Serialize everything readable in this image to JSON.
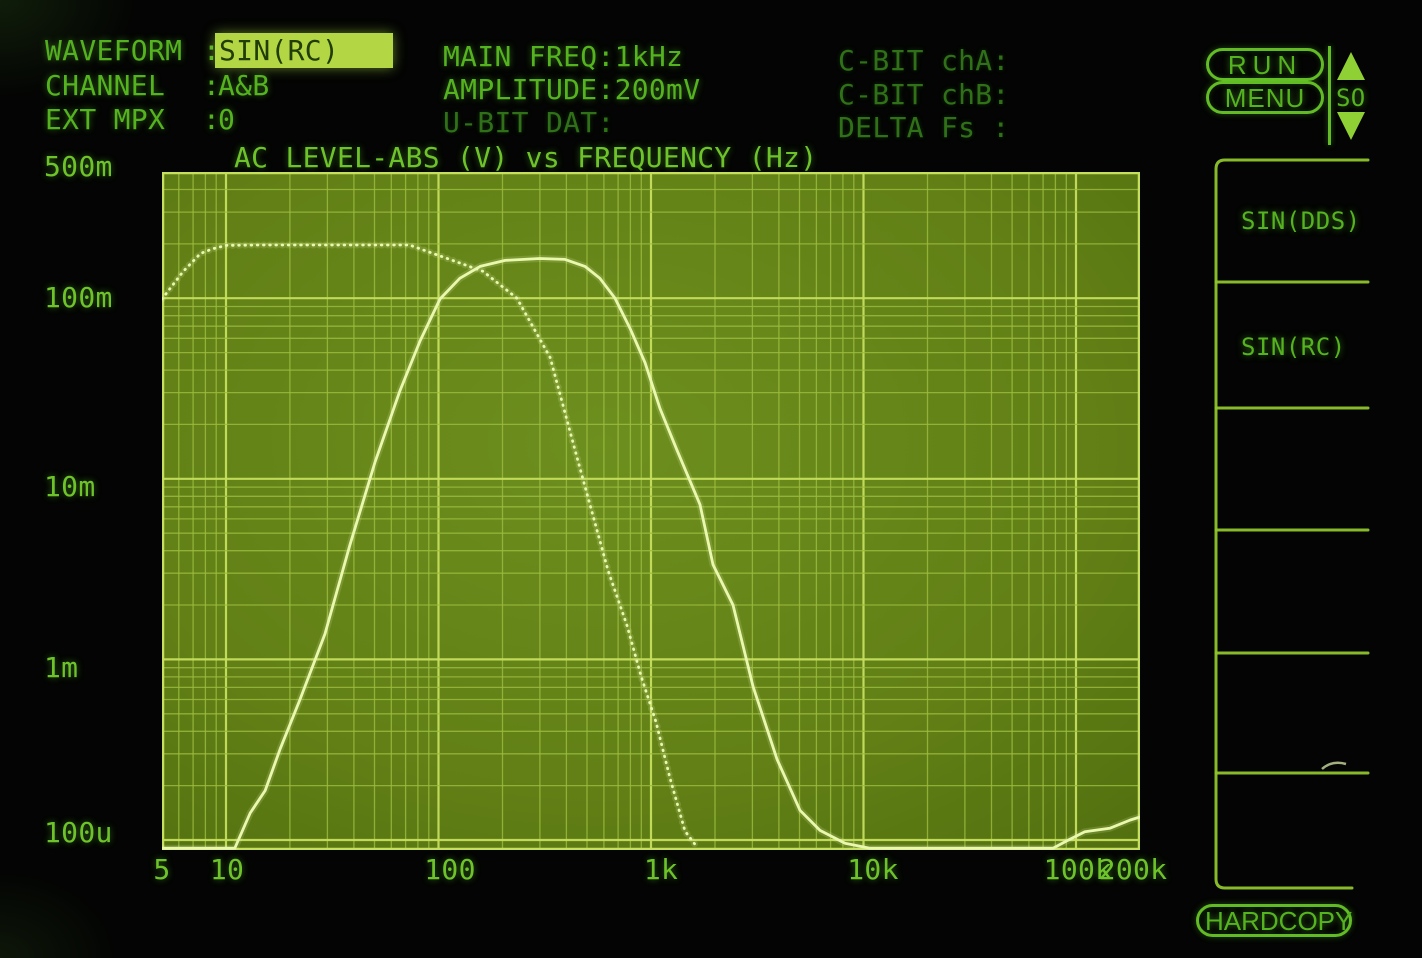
{
  "header": {
    "colon": ":",
    "rows": [
      {
        "label": "WAVEFORM",
        "value": "SIN(RC)"
      },
      {
        "label": "CHANNEL",
        "value": "A&B"
      },
      {
        "label": "EXT MPX",
        "value": "0"
      }
    ],
    "col2": [
      "MAIN FREQ:1kHz",
      "AMPLITUDE:200mV",
      "U-BIT DAT:"
    ],
    "col3": [
      "C-BIT chA:",
      "C-BIT chB:",
      "DELTA Fs :"
    ]
  },
  "controls": {
    "run": "RUN",
    "menu": "MENU",
    "scroll_label": "SO",
    "hardcopy": "HARDCOPY"
  },
  "softkeys": [
    "SIN(DDS)",
    "SIN(RC)",
    "",
    "",
    "",
    ""
  ],
  "colors": {
    "phosphor_text": "#55b31f",
    "dim_text": "#2f7018",
    "highlight_bg": "#b2d644",
    "highlight_text": "#213d03",
    "plot_background": "#617f15",
    "grid_minor": "#9dbd40",
    "grid_major": "#c6df5e",
    "trace": "#eaf8ae",
    "screen_background": "#030403"
  },
  "chart_data": {
    "type": "line",
    "title": "AC LEVEL-ABS (V) vs FREQUENCY (Hz)",
    "xlabel": "FREQUENCY (Hz)",
    "ylabel": "AC LEVEL-ABS (V)",
    "x_scale": "log",
    "y_scale": "log",
    "xlim": [
      5,
      200000
    ],
    "ylim": [
      8.8e-05,
      0.5
    ],
    "grid": "log decades with minor lines, both axes",
    "legend_position": "none",
    "x_ticks": [
      {
        "value": 5,
        "label": "5"
      },
      {
        "value": 10,
        "label": "10"
      },
      {
        "value": 100,
        "label": "100"
      },
      {
        "value": 1000,
        "label": "1k"
      },
      {
        "value": 10000,
        "label": "10k"
      },
      {
        "value": 100000,
        "label": "100k"
      },
      {
        "value": 200000,
        "label": "200k"
      }
    ],
    "y_ticks": [
      {
        "value": 0.5,
        "label": "500m"
      },
      {
        "value": 0.1,
        "label": "100m"
      },
      {
        "value": 0.01,
        "label": "10m"
      },
      {
        "value": 0.001,
        "label": "1m"
      },
      {
        "value": 0.0001,
        "label": "100u"
      }
    ],
    "series": [
      {
        "name": "dotted-trace-lowpass",
        "style": "dotted",
        "points": [
          [
            5,
            0.099
          ],
          [
            6.3,
            0.141
          ],
          [
            7.6,
            0.177
          ],
          [
            8.7,
            0.188
          ],
          [
            10,
            0.196
          ],
          [
            14.5,
            0.197
          ],
          [
            40,
            0.197
          ],
          [
            73,
            0.197
          ],
          [
            113,
            0.164
          ],
          [
            162,
            0.141
          ],
          [
            234,
            0.1
          ],
          [
            335,
            0.047
          ],
          [
            448,
            0.0132
          ],
          [
            628,
            0.0031
          ],
          [
            771,
            0.00154
          ],
          [
            897,
            0.00081
          ],
          [
            1056,
            0.00045
          ],
          [
            1229,
            0.00022
          ],
          [
            1445,
            0.000112
          ],
          [
            1646,
            9.14e-05
          ]
        ]
      },
      {
        "name": "solid-trace-bandpass",
        "style": "solid",
        "points": [
          [
            5,
            9e-05
          ],
          [
            11,
            9e-05
          ],
          [
            13,
            0.000141
          ],
          [
            15.3,
            0.000188
          ],
          [
            18,
            0.00032
          ],
          [
            22.3,
            0.0006
          ],
          [
            29.2,
            0.00138
          ],
          [
            38.3,
            0.0043
          ],
          [
            50.3,
            0.0124
          ],
          [
            65.9,
            0.0308
          ],
          [
            81.9,
            0.058
          ],
          [
            101.7,
            0.099
          ],
          [
            126,
            0.129
          ],
          [
            157,
            0.15
          ],
          [
            206,
            0.162
          ],
          [
            300,
            0.166
          ],
          [
            394,
            0.164
          ],
          [
            489,
            0.15
          ],
          [
            575,
            0.129
          ],
          [
            677,
            0.1
          ],
          [
            797,
            0.068
          ],
          [
            937,
            0.044
          ],
          [
            1103,
            0.0245
          ],
          [
            1326,
            0.0144
          ],
          [
            1700,
            0.0072
          ],
          [
            1958,
            0.00335
          ],
          [
            2431,
            0.002
          ],
          [
            3020,
            0.00071
          ],
          [
            3916,
            0.00028
          ],
          [
            5025,
            0.000146
          ],
          [
            6242,
            0.000113
          ],
          [
            8182,
            9.6e-05
          ],
          [
            10728,
            9e-05
          ],
          [
            77900,
            9e-05
          ],
          [
            90700,
            9.9e-05
          ],
          [
            110000,
            0.000111
          ],
          [
            144000,
            0.000116
          ],
          [
            180000,
            0.000129
          ],
          [
            200000,
            0.000134
          ]
        ]
      }
    ]
  }
}
